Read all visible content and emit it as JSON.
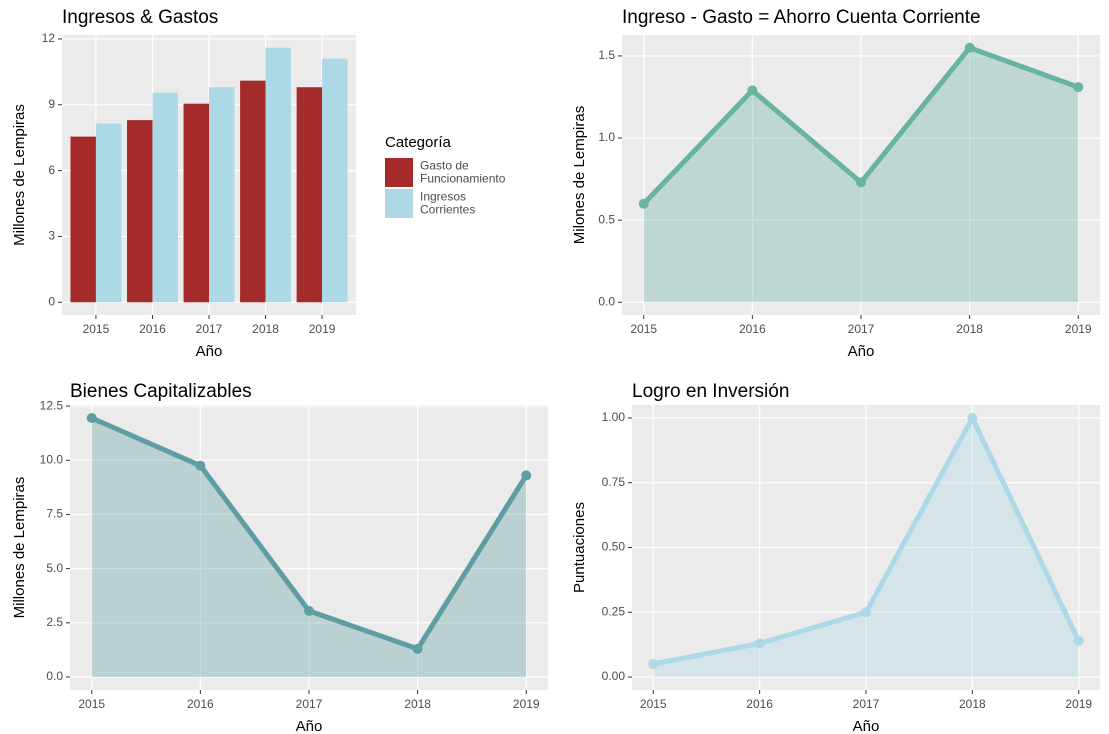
{
  "chart_data": [
    {
      "type": "bar",
      "title": "Ingresos & Gastos",
      "x_label": "Año",
      "y_label": "Millones de Lempiras",
      "categories": [
        "2015",
        "2016",
        "2017",
        "2018",
        "2019"
      ],
      "series": [
        {
          "name": "Gasto de\nFuncionamiento",
          "color": "#a52a2a",
          "values": [
            7.55,
            8.3,
            9.05,
            10.1,
            9.8
          ]
        },
        {
          "name": "Ingresos\nCorrientes",
          "color": "#add8e6",
          "values": [
            8.15,
            9.55,
            9.8,
            11.6,
            11.1
          ]
        }
      ],
      "legend_title": "Categoría",
      "legend": "right",
      "ylim": [
        -0.58,
        12.18
      ],
      "yticks": [
        0,
        3,
        6,
        9,
        12
      ],
      "grid": true
    },
    {
      "type": "area",
      "title": "Ingreso - Gasto = Ahorro Cuenta Corriente",
      "x_label": "Año",
      "y_label": "Milones de Lempiras",
      "categories": [
        "2015",
        "2016",
        "2017",
        "2018",
        "2019"
      ],
      "color": "#69b3a2",
      "values": [
        0.6,
        1.29,
        0.73,
        1.55,
        1.31
      ],
      "ylim": [
        -0.0775,
        1.6275
      ],
      "yticks": [
        {
          "value": 0,
          "label": "0.0"
        },
        {
          "value": 0.5,
          "label": "0.5"
        },
        {
          "value": 1,
          "label": "1.0"
        },
        {
          "value": 1.5,
          "label": "1.5"
        }
      ],
      "grid": true
    },
    {
      "type": "area",
      "title": "Bienes Capitalizables",
      "x_label": "Año",
      "y_label": "Millones de Lempiras",
      "categories": [
        "2015",
        "2016",
        "2017",
        "2018",
        "2019"
      ],
      "color": "#5f9ea0",
      "values": [
        11.95,
        9.75,
        3.05,
        1.3,
        9.3
      ],
      "ylim": [
        -0.6,
        12.55
      ],
      "yticks": [
        {
          "value": 0,
          "label": "0.0"
        },
        {
          "value": 2.5,
          "label": "2.5"
        },
        {
          "value": 5,
          "label": "5.0"
        },
        {
          "value": 7.5,
          "label": "7.5"
        },
        {
          "value": 10,
          "label": "10.0"
        },
        {
          "value": 12.5,
          "label": "12.5"
        }
      ],
      "grid": true
    },
    {
      "type": "area",
      "title": "Logro en Inversión",
      "x_label": "Año",
      "y_label": "Puntuaciones",
      "categories": [
        "2015",
        "2016",
        "2017",
        "2018",
        "2019"
      ],
      "color": "#add8e6",
      "values": [
        0.05,
        0.13,
        0.25,
        1.0,
        0.14
      ],
      "ylim": [
        -0.05,
        1.05
      ],
      "yticks": [
        {
          "value": 0,
          "label": "0.00"
        },
        {
          "value": 0.25,
          "label": "0.25"
        },
        {
          "value": 0.5,
          "label": "0.50"
        },
        {
          "value": 0.75,
          "label": "0.75"
        },
        {
          "value": 1,
          "label": "1.00"
        }
      ],
      "grid": true
    }
  ]
}
